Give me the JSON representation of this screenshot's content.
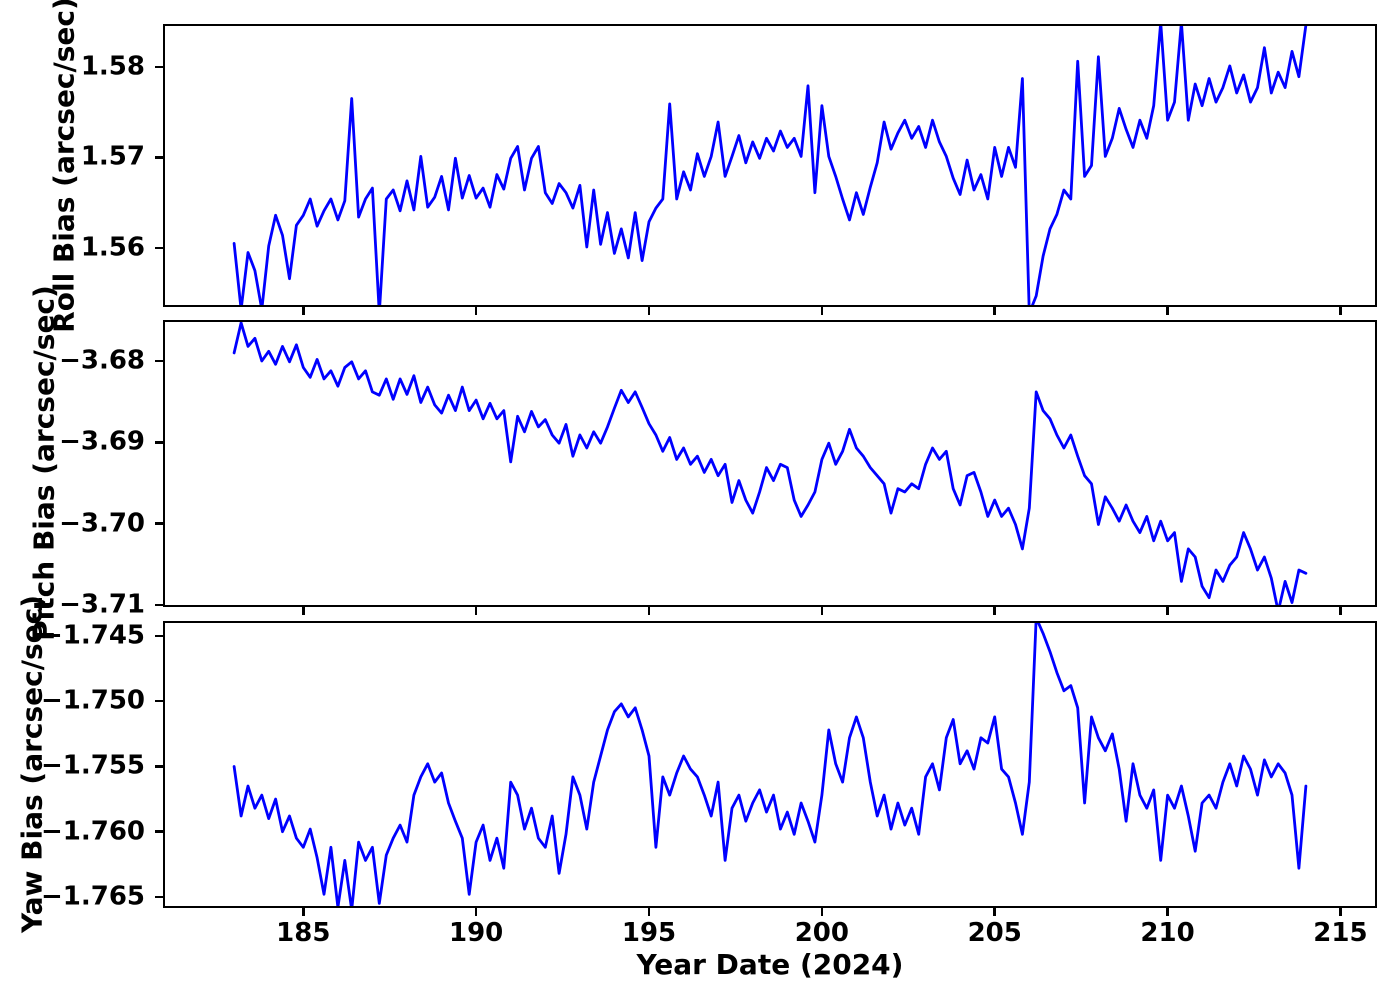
{
  "figure": {
    "background": "#ffffff",
    "axes_color": "#000000"
  },
  "chart_data": {
    "type": "line",
    "title": "",
    "xlabel": "Year Date (2024)",
    "xlim": [
      181,
      216
    ],
    "xticks": {
      "values": [
        185,
        190,
        195,
        200,
        205,
        210,
        215
      ],
      "labels": [
        "185",
        "190",
        "195",
        "200",
        "205",
        "210",
        "215"
      ]
    },
    "line_color": "#0000ff",
    "legend": "none",
    "grid": "off",
    "x_start": 183.0,
    "x_step": 0.2,
    "panels": [
      {
        "name": "roll",
        "ylabel": "Roll Bias (arcsec/sec)",
        "ylim": [
          1.5537,
          1.5845
        ],
        "yticks": {
          "values": [
            1.58,
            1.57,
            1.56
          ],
          "labels": [
            "1.58",
            "1.57",
            "1.56"
          ]
        },
        "y": [
          1.5605,
          1.5532,
          1.5595,
          1.5575,
          1.5532,
          1.5602,
          1.5636,
          1.5614,
          1.5566,
          1.5625,
          1.5636,
          1.5654,
          1.5624,
          1.5641,
          1.5654,
          1.5631,
          1.5652,
          1.5765,
          1.5634,
          1.5654,
          1.5666,
          1.5528,
          1.5654,
          1.5664,
          1.5641,
          1.5674,
          1.5642,
          1.5701,
          1.5645,
          1.5656,
          1.5679,
          1.5642,
          1.5699,
          1.5655,
          1.568,
          1.5655,
          1.5666,
          1.5645,
          1.5681,
          1.5665,
          1.5699,
          1.5712,
          1.5664,
          1.5699,
          1.5712,
          1.5661,
          1.5649,
          1.5671,
          1.5661,
          1.5644,
          1.5669,
          1.5601,
          1.5664,
          1.5604,
          1.5639,
          1.5594,
          1.5621,
          1.5589,
          1.5639,
          1.5586,
          1.5629,
          1.5644,
          1.5654,
          1.5759,
          1.5654,
          1.5684,
          1.5664,
          1.5704,
          1.5679,
          1.5701,
          1.5739,
          1.5679,
          1.5701,
          1.5724,
          1.5694,
          1.5717,
          1.5699,
          1.5721,
          1.5707,
          1.5729,
          1.5711,
          1.5721,
          1.5701,
          1.5779,
          1.5661,
          1.5757,
          1.5701,
          1.5679,
          1.5654,
          1.5631,
          1.5661,
          1.5637,
          1.5667,
          1.5694,
          1.5739,
          1.5709,
          1.5727,
          1.5741,
          1.5721,
          1.5734,
          1.5711,
          1.5741,
          1.5717,
          1.5701,
          1.5677,
          1.5659,
          1.5697,
          1.5664,
          1.5681,
          1.5654,
          1.5711,
          1.5679,
          1.5711,
          1.5689,
          1.5787,
          1.5528,
          1.5547,
          1.5591,
          1.5621,
          1.5637,
          1.5664,
          1.5654,
          1.5806,
          1.5679,
          1.5691,
          1.5811,
          1.5701,
          1.5721,
          1.5754,
          1.5731,
          1.5711,
          1.5741,
          1.5721,
          1.5757,
          1.5849,
          1.5741,
          1.5761,
          1.5849,
          1.5741,
          1.5781,
          1.5757,
          1.5787,
          1.5761,
          1.5777,
          1.5801,
          1.5771,
          1.5791,
          1.5761,
          1.5777,
          1.5821,
          1.5771,
          1.5794,
          1.5777,
          1.5817,
          1.5789,
          1.5846
        ]
      },
      {
        "name": "pitch",
        "ylabel": "Pitch Bias (arcsec/sec)",
        "ylim": [
          -3.71,
          -3.6752
        ],
        "yticks": {
          "values": [
            -3.68,
            -3.69,
            -3.7,
            -3.71
          ],
          "labels": [
            "−3.68",
            "−3.69",
            "−3.70",
            "−3.71"
          ]
        },
        "y": [
          -3.679,
          -3.6753,
          -3.6782,
          -3.6772,
          -3.68,
          -3.6788,
          -3.6804,
          -3.6782,
          -3.6801,
          -3.678,
          -3.6808,
          -3.682,
          -3.6798,
          -3.6822,
          -3.6812,
          -3.6831,
          -3.6808,
          -3.6801,
          -3.6822,
          -3.6812,
          -3.6838,
          -3.6842,
          -3.6822,
          -3.6847,
          -3.6822,
          -3.6841,
          -3.6818,
          -3.6851,
          -3.6832,
          -3.6854,
          -3.6864,
          -3.6842,
          -3.6861,
          -3.6832,
          -3.6861,
          -3.6848,
          -3.6871,
          -3.6852,
          -3.6871,
          -3.6861,
          -3.6924,
          -3.6868,
          -3.6887,
          -3.6862,
          -3.6881,
          -3.6872,
          -3.6891,
          -3.6901,
          -3.6878,
          -3.6917,
          -3.6891,
          -3.6907,
          -3.6887,
          -3.6901,
          -3.6881,
          -3.6858,
          -3.6836,
          -3.6851,
          -3.6838,
          -3.6857,
          -3.6877,
          -3.6891,
          -3.6911,
          -3.6894,
          -3.6921,
          -3.6907,
          -3.6927,
          -3.6917,
          -3.6937,
          -3.6921,
          -3.6941,
          -3.6927,
          -3.6974,
          -3.6947,
          -3.6971,
          -3.6987,
          -3.6961,
          -3.6931,
          -3.6947,
          -3.6927,
          -3.6931,
          -3.6971,
          -3.6991,
          -3.6977,
          -3.6961,
          -3.6921,
          -3.6901,
          -3.6927,
          -3.6911,
          -3.6884,
          -3.6907,
          -3.6917,
          -3.6931,
          -3.6941,
          -3.6951,
          -3.6987,
          -3.6957,
          -3.6961,
          -3.6951,
          -3.6957,
          -3.6927,
          -3.6907,
          -3.6921,
          -3.6911,
          -3.6957,
          -3.6977,
          -3.6941,
          -3.6937,
          -3.6961,
          -3.6991,
          -3.6971,
          -3.6991,
          -3.6981,
          -3.7001,
          -3.7031,
          -3.6981,
          -3.6838,
          -3.6861,
          -3.6871,
          -3.6891,
          -3.6907,
          -3.6891,
          -3.6917,
          -3.6941,
          -3.6951,
          -3.7001,
          -3.6967,
          -3.6981,
          -3.6997,
          -3.6977,
          -3.6997,
          -3.7011,
          -3.6991,
          -3.7021,
          -3.6997,
          -3.7021,
          -3.7011,
          -3.7071,
          -3.7031,
          -3.7041,
          -3.7077,
          -3.7091,
          -3.7057,
          -3.7071,
          -3.7051,
          -3.7041,
          -3.7011,
          -3.7031,
          -3.7057,
          -3.7041,
          -3.7067,
          -3.7108,
          -3.7071,
          -3.7097,
          -3.7057,
          -3.7061
        ]
      },
      {
        "name": "yaw",
        "ylabel": "Yaw Bias (arcsec/sec)",
        "ylim": [
          -1.7657,
          -1.744
        ],
        "yticks": {
          "values": [
            -1.745,
            -1.75,
            -1.755,
            -1.76,
            -1.765
          ],
          "labels": [
            "−1.745",
            "−1.750",
            "−1.755",
            "−1.760",
            "−1.765"
          ]
        },
        "y": [
          -1.755,
          -1.7588,
          -1.7565,
          -1.7582,
          -1.7572,
          -1.759,
          -1.7575,
          -1.76,
          -1.7588,
          -1.7605,
          -1.7612,
          -1.7598,
          -1.762,
          -1.7648,
          -1.7612,
          -1.7658,
          -1.7622,
          -1.766,
          -1.7608,
          -1.7622,
          -1.7612,
          -1.7655,
          -1.7618,
          -1.7605,
          -1.7595,
          -1.7608,
          -1.7572,
          -1.7558,
          -1.7548,
          -1.7562,
          -1.7555,
          -1.7578,
          -1.7592,
          -1.7605,
          -1.7648,
          -1.7608,
          -1.7595,
          -1.7622,
          -1.7605,
          -1.7628,
          -1.7562,
          -1.7572,
          -1.7598,
          -1.7582,
          -1.7605,
          -1.7612,
          -1.7588,
          -1.7632,
          -1.7602,
          -1.7558,
          -1.7572,
          -1.7598,
          -1.7562,
          -1.7542,
          -1.7522,
          -1.7508,
          -1.7502,
          -1.7512,
          -1.7505,
          -1.7522,
          -1.7542,
          -1.7612,
          -1.7558,
          -1.7572,
          -1.7555,
          -1.7542,
          -1.7552,
          -1.7558,
          -1.7572,
          -1.7588,
          -1.7562,
          -1.7622,
          -1.7582,
          -1.7572,
          -1.7592,
          -1.7578,
          -1.7568,
          -1.7585,
          -1.7572,
          -1.7598,
          -1.7585,
          -1.7602,
          -1.7578,
          -1.7592,
          -1.7608,
          -1.7572,
          -1.7522,
          -1.7548,
          -1.7562,
          -1.7528,
          -1.7512,
          -1.7528,
          -1.7562,
          -1.7588,
          -1.7572,
          -1.7598,
          -1.7578,
          -1.7595,
          -1.7582,
          -1.7602,
          -1.7558,
          -1.7548,
          -1.7568,
          -1.7528,
          -1.7514,
          -1.7548,
          -1.7538,
          -1.7552,
          -1.7528,
          -1.7532,
          -1.7512,
          -1.7552,
          -1.7558,
          -1.7578,
          -1.7602,
          -1.7562,
          -1.7436,
          -1.7448,
          -1.7462,
          -1.7478,
          -1.7492,
          -1.7488,
          -1.7505,
          -1.7578,
          -1.7512,
          -1.7528,
          -1.7538,
          -1.7525,
          -1.7552,
          -1.7592,
          -1.7548,
          -1.7572,
          -1.7582,
          -1.7568,
          -1.7622,
          -1.7572,
          -1.7582,
          -1.7565,
          -1.7588,
          -1.7615,
          -1.7578,
          -1.7572,
          -1.7582,
          -1.7562,
          -1.7548,
          -1.7565,
          -1.7542,
          -1.7552,
          -1.7572,
          -1.7545,
          -1.7558,
          -1.7548,
          -1.7555,
          -1.7572,
          -1.7628,
          -1.7565
        ]
      }
    ]
  }
}
